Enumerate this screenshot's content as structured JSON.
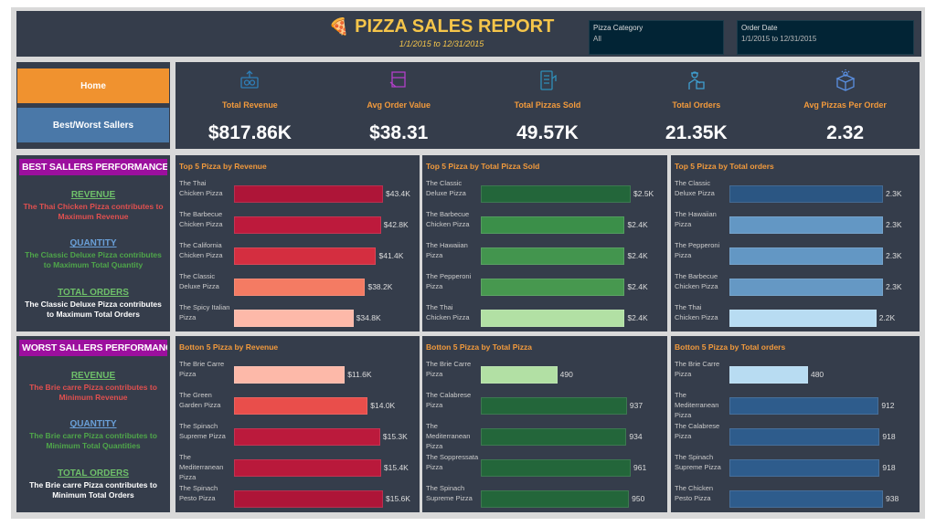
{
  "header": {
    "title": "PIZZA SALES REPORT",
    "date_range": "1/1/2015 to 12/31/2015",
    "filters": [
      {
        "label": "Pizza Category",
        "value": "All"
      },
      {
        "label": "Order Date",
        "value": "1/1/2015 to 12/31/2015"
      }
    ]
  },
  "nav": {
    "home": "Home",
    "best_worst": "Best/Worst Sallers",
    "home_color": "#f0922f",
    "best_worst_color": "#4a78a8"
  },
  "kpis": [
    {
      "label": "Total Revenue",
      "value": "$817.86K",
      "icon": "money-icon",
      "color": "#2f7fb8"
    },
    {
      "label": "Avg Order Value",
      "value": "$38.31",
      "icon": "pizza-box-icon",
      "color": "#b23fc9"
    },
    {
      "label": "Total Pizzas Sold",
      "value": "49.57K",
      "icon": "checklist-icon",
      "color": "#2f8fb8"
    },
    {
      "label": "Total Orders",
      "value": "21.35K",
      "icon": "delivery-person-icon",
      "color": "#3f9fd0"
    },
    {
      "label": "Avg Pizzas Per Order",
      "value": "2.32",
      "icon": "box-icon",
      "color": "#5a8fe0"
    }
  ],
  "best": {
    "title": "BEST SALLERS PERFORMANCE",
    "revenue_head": "REVENUE",
    "revenue_text": "The Thai Chicken Pizza contributes to Maximum Revenue",
    "quantity_head": "QUANTITY",
    "quantity_text": "The Classic Deluxe Pizza contributes to Maximum Total Quantity",
    "orders_head": "TOTAL ORDERS",
    "orders_text": "The Classic Deluxe Pizza contributes to Maximum Total Orders"
  },
  "worst": {
    "title": "WORST SALLERS PERFORMANCE",
    "revenue_head": "REVENUE",
    "revenue_text": "The Brie  carre Pizza contributes to Minimum Revenue",
    "quantity_head": "QUANTITY",
    "quantity_text": "The Brie  carre Pizza contributes to Minimum Total Quantities",
    "orders_head": "TOTAL ORDERS",
    "orders_text": "The Brie  carre Pizza contributes to Minimum Total Orders"
  },
  "chart_data": [
    {
      "type": "bar",
      "orientation": "horizontal",
      "title": "Top 5 Pizza by Revenue",
      "unit": "$K",
      "categories": [
        "The Thai Chicken Pizza",
        "The Barbecue Chicken Pizza",
        "The California Chicken Pizza",
        "The Classic Deluxe Pizza",
        "The Spicy Italian Pizza"
      ],
      "values": [
        43.4,
        42.8,
        41.4,
        38.2,
        34.8
      ],
      "labels": [
        "$43.4K",
        "$42.8K",
        "$41.4K",
        "$38.2K",
        "$34.8K"
      ],
      "colors": [
        "#ae1538",
        "#bd1a3c",
        "#d42e40",
        "#f47b63",
        "#fdb9a9"
      ]
    },
    {
      "type": "bar",
      "orientation": "horizontal",
      "title": "Top 5 Pizza by Total Pizza Sold",
      "unit": "K",
      "categories": [
        "The Classic Deluxe Pizza",
        "The Barbecue Chicken Pizza",
        "The Hawaiian Pizza",
        "The Pepperoni Pizza",
        "The Thai Chicken Pizza"
      ],
      "values": [
        2.5,
        2.4,
        2.4,
        2.4,
        2.4
      ],
      "labels": [
        "$2.5K",
        "$2.4K",
        "$2.4K",
        "$2.4K",
        "$2.4K"
      ],
      "colors": [
        "#23663a",
        "#3b8f49",
        "#43954e",
        "#47984f",
        "#b2e0a4"
      ]
    },
    {
      "type": "bar",
      "orientation": "horizontal",
      "title": "Top 5 Pizza by Total orders",
      "unit": "K",
      "categories": [
        "The Classic Deluxe Pizza",
        "The Hawaiian Pizza",
        "The Pepperoni Pizza",
        "The Barbecue Chicken Pizza",
        "The Thai Chicken Pizza"
      ],
      "values": [
        2.3,
        2.3,
        2.3,
        2.3,
        2.2
      ],
      "labels": [
        "2.3K",
        "2.3K",
        "2.3K",
        "2.3K",
        "2.2K"
      ],
      "colors": [
        "#2b5683",
        "#6397c4",
        "#6397c4",
        "#6598c4",
        "#b8dcf2"
      ]
    },
    {
      "type": "bar",
      "orientation": "horizontal",
      "title": "Botton 5 Pizza by Revenue",
      "unit": "$K",
      "categories": [
        "The Brie Carre Pizza",
        "The Green Garden Pizza",
        "The Spinach Supreme Pizza",
        "The Mediterranean Pizza",
        "The Spinach Pesto Pizza"
      ],
      "values": [
        11.6,
        14.0,
        15.3,
        15.4,
        15.6
      ],
      "labels": [
        "$11.6K",
        "$14.0K",
        "$15.3K",
        "$15.4K",
        "$15.6K"
      ],
      "colors": [
        "#fdb9a9",
        "#e94e4b",
        "#bb1a3c",
        "#b9193b",
        "#ae1538"
      ]
    },
    {
      "type": "bar",
      "orientation": "horizontal",
      "title": "Botton 5 Pizza by Total Pizza",
      "unit": "",
      "categories": [
        "The Brie Carre Pizza",
        "The Calabrese Pizza",
        "The Mediterranean Pizza",
        "The Soppressata Pizza",
        "The Spinach Supreme Pizza"
      ],
      "values": [
        490,
        937,
        934,
        961,
        950
      ],
      "labels": [
        "490",
        "937",
        "934",
        "961",
        "950"
      ],
      "colors": [
        "#b2e0a4",
        "#23663a",
        "#23663a",
        "#23663a",
        "#23663a"
      ]
    },
    {
      "type": "bar",
      "orientation": "horizontal",
      "title": "Botton 5 Pizza by Total orders",
      "unit": "",
      "categories": [
        "The Brie Carre Pizza",
        "The Mediterranean Pizza",
        "The Calabrese Pizza",
        "The Spinach Supreme Pizza",
        "The Chicken Pesto Pizza"
      ],
      "values": [
        480,
        912,
        918,
        918,
        938
      ],
      "labels": [
        "480",
        "912",
        "918",
        "918",
        "938"
      ],
      "colors": [
        "#b8dcf2",
        "#2e5c8c",
        "#2e5c8c",
        "#2e5c8c",
        "#2e5c8c"
      ]
    }
  ]
}
